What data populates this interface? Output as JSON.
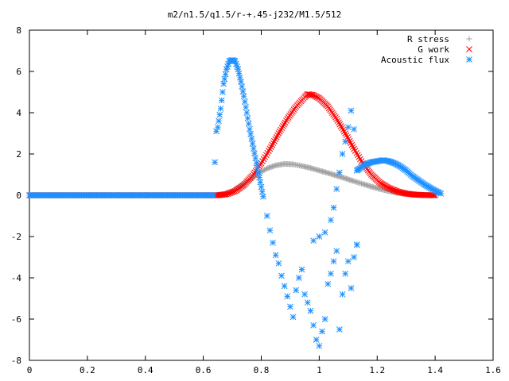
{
  "chart_data": {
    "type": "scatter",
    "title": "m2/n1.5/q1.5/r-+.45-j232/M1.5/512",
    "xlabel": "",
    "ylabel": "",
    "xlim": [
      0,
      1.6
    ],
    "ylim": [
      -8,
      8
    ],
    "xticks": [
      "0",
      "0.2",
      "0.4",
      "0.6",
      "0.8",
      "1",
      "1.2",
      "1.4",
      "1.6"
    ],
    "yticks": [
      "8",
      "6",
      "4",
      "2",
      "0",
      "-2",
      "-4",
      "-6",
      "-8"
    ],
    "grid": false,
    "legend_position": "top-right",
    "series": [
      {
        "name": "R stress",
        "marker": "plus",
        "color": "#a0a0a0",
        "points": [
          [
            0.0,
            0
          ],
          [
            0.1,
            0
          ],
          [
            0.2,
            0
          ],
          [
            0.3,
            0
          ],
          [
            0.4,
            0
          ],
          [
            0.5,
            0
          ],
          [
            0.6,
            0
          ],
          [
            0.65,
            0
          ],
          [
            0.67,
            0.05
          ],
          [
            0.7,
            0.2
          ],
          [
            0.73,
            0.45
          ],
          [
            0.76,
            0.75
          ],
          [
            0.79,
            1.05
          ],
          [
            0.82,
            1.3
          ],
          [
            0.85,
            1.45
          ],
          [
            0.88,
            1.52
          ],
          [
            0.91,
            1.5
          ],
          [
            0.94,
            1.42
          ],
          [
            0.97,
            1.32
          ],
          [
            1.0,
            1.2
          ],
          [
            1.03,
            1.08
          ],
          [
            1.06,
            0.95
          ],
          [
            1.09,
            0.82
          ],
          [
            1.12,
            0.68
          ],
          [
            1.15,
            0.55
          ],
          [
            1.18,
            0.42
          ],
          [
            1.21,
            0.3
          ],
          [
            1.24,
            0.2
          ],
          [
            1.27,
            0.12
          ],
          [
            1.3,
            0.07
          ],
          [
            1.33,
            0.03
          ],
          [
            1.36,
            0.01
          ],
          [
            1.4,
            0
          ]
        ]
      },
      {
        "name": "G work",
        "marker": "cross",
        "color": "#ff0000",
        "points": [
          [
            0.0,
            0
          ],
          [
            0.1,
            0
          ],
          [
            0.2,
            0
          ],
          [
            0.3,
            0
          ],
          [
            0.4,
            0
          ],
          [
            0.5,
            0
          ],
          [
            0.6,
            0
          ],
          [
            0.65,
            0
          ],
          [
            0.68,
            0.05
          ],
          [
            0.71,
            0.2
          ],
          [
            0.74,
            0.5
          ],
          [
            0.77,
            0.95
          ],
          [
            0.8,
            1.55
          ],
          [
            0.83,
            2.25
          ],
          [
            0.86,
            3.0
          ],
          [
            0.89,
            3.7
          ],
          [
            0.92,
            4.3
          ],
          [
            0.95,
            4.75
          ],
          [
            0.96,
            4.9
          ],
          [
            0.98,
            4.85
          ],
          [
            1.0,
            4.7
          ],
          [
            1.03,
            4.3
          ],
          [
            1.06,
            3.7
          ],
          [
            1.09,
            3.0
          ],
          [
            1.12,
            2.25
          ],
          [
            1.15,
            1.55
          ],
          [
            1.18,
            1.0
          ],
          [
            1.21,
            0.6
          ],
          [
            1.24,
            0.35
          ],
          [
            1.27,
            0.18
          ],
          [
            1.3,
            0.08
          ],
          [
            1.33,
            0.03
          ],
          [
            1.36,
            0.01
          ],
          [
            1.4,
            0
          ]
        ]
      },
      {
        "name": "Acoustic flux",
        "marker": "star",
        "color": "#1e90ff",
        "points": [
          [
            0.0,
            0
          ],
          [
            0.1,
            0
          ],
          [
            0.2,
            0
          ],
          [
            0.3,
            0
          ],
          [
            0.4,
            0
          ],
          [
            0.5,
            0
          ],
          [
            0.6,
            0
          ],
          [
            0.64,
            1.6
          ],
          [
            0.645,
            3.1
          ],
          [
            0.65,
            3.3
          ],
          [
            0.66,
            4.2
          ],
          [
            0.67,
            5.4
          ],
          [
            0.68,
            6.1
          ],
          [
            0.69,
            6.5
          ],
          [
            0.7,
            6.55
          ],
          [
            0.71,
            6.5
          ],
          [
            0.72,
            6.1
          ],
          [
            0.73,
            5.5
          ],
          [
            0.74,
            4.8
          ],
          [
            0.75,
            4.0
          ],
          [
            0.76,
            3.2
          ],
          [
            0.77,
            2.5
          ],
          [
            0.78,
            1.8
          ],
          [
            0.79,
            1.1
          ],
          [
            0.8,
            0.4
          ],
          [
            0.81,
            -0.3
          ],
          [
            0.82,
            -1.0
          ],
          [
            0.83,
            -1.7
          ],
          [
            0.84,
            -2.3
          ],
          [
            0.85,
            -2.9
          ],
          [
            0.86,
            -3.3
          ],
          [
            0.87,
            -3.9
          ],
          [
            0.88,
            -4.4
          ],
          [
            0.89,
            -4.9
          ],
          [
            0.9,
            -5.4
          ],
          [
            0.91,
            -5.9
          ],
          [
            0.92,
            -4.6
          ],
          [
            0.93,
            -4.0
          ],
          [
            0.94,
            -3.6
          ],
          [
            0.95,
            -4.8
          ],
          [
            0.96,
            -5.2
          ],
          [
            0.97,
            -5.6
          ],
          [
            0.98,
            -6.3
          ],
          [
            0.99,
            -7.0
          ],
          [
            1.0,
            -7.3
          ],
          [
            1.01,
            -6.6
          ],
          [
            1.02,
            -6.0
          ],
          [
            1.03,
            -4.3
          ],
          [
            1.04,
            -3.8
          ],
          [
            1.05,
            -3.2
          ],
          [
            1.06,
            -2.7
          ],
          [
            1.07,
            -6.5
          ],
          [
            1.08,
            -4.8
          ],
          [
            1.09,
            -3.8
          ],
          [
            1.1,
            -3.2
          ],
          [
            1.11,
            -4.5
          ],
          [
            1.12,
            -3.0
          ],
          [
            1.13,
            -2.4
          ],
          [
            0.98,
            -2.2
          ],
          [
            1.0,
            -2.0
          ],
          [
            1.02,
            -1.8
          ],
          [
            1.04,
            -1.2
          ],
          [
            1.05,
            -0.6
          ],
          [
            1.06,
            0.3
          ],
          [
            1.07,
            1.1
          ],
          [
            1.08,
            2.0
          ],
          [
            1.09,
            2.6
          ],
          [
            1.1,
            3.3
          ],
          [
            1.11,
            4.1
          ],
          [
            1.12,
            3.2
          ],
          [
            1.13,
            1.2
          ],
          [
            1.14,
            1.3
          ],
          [
            1.16,
            1.5
          ],
          [
            1.18,
            1.6
          ],
          [
            1.2,
            1.65
          ],
          [
            1.22,
            1.7
          ],
          [
            1.24,
            1.65
          ],
          [
            1.26,
            1.55
          ],
          [
            1.28,
            1.4
          ],
          [
            1.3,
            1.2
          ],
          [
            1.32,
            0.95
          ],
          [
            1.34,
            0.75
          ],
          [
            1.36,
            0.55
          ],
          [
            1.38,
            0.38
          ],
          [
            1.4,
            0.22
          ],
          [
            1.42,
            0.08
          ]
        ]
      }
    ]
  }
}
